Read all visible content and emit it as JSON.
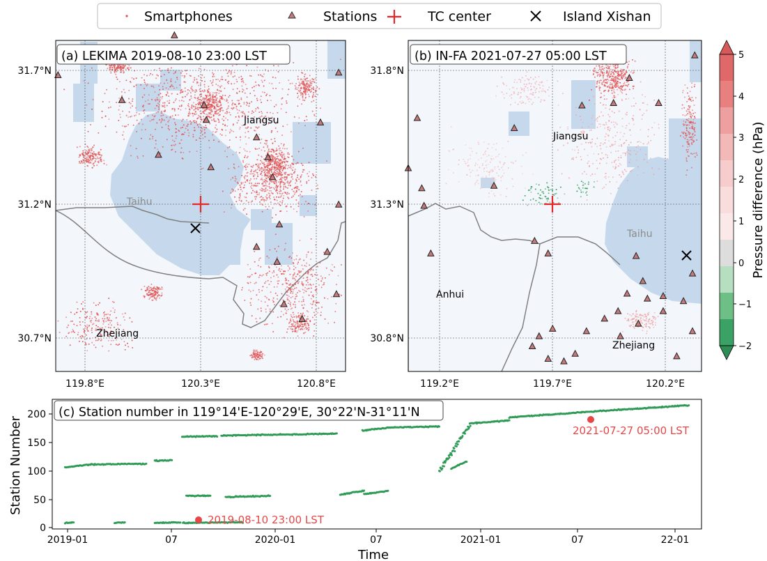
{
  "legend": {
    "items": [
      {
        "label": "Smartphones",
        "symbol": "dot"
      },
      {
        "label": "Stations",
        "symbol": "triangle"
      },
      {
        "label": "TC center",
        "symbol": "plus"
      },
      {
        "label": "Island Xishan",
        "symbol": "cross"
      }
    ]
  },
  "colors": {
    "water": "#c6d9ec",
    "land": "#f3f7fc",
    "smartphone": "#e05252",
    "station_fill": "#c47a7a",
    "tc_center": "#e8262a",
    "negative": "#2e9a55",
    "highlight": "#e64646",
    "border": "#7f7f7f"
  },
  "chart_data": [
    {
      "type": "scatter",
      "panel": "a",
      "title": "(a) LEKIMA 2019-08-10 23:00 LST",
      "x_ticks": [
        "119.8°E",
        "120.3°E",
        "120.8°E"
      ],
      "y_ticks": [
        "30.7°N",
        "31.2°N",
        "31.7°N"
      ],
      "xlim": [
        119.65,
        120.92
      ],
      "ylim": [
        30.55,
        31.88
      ],
      "tc_center": [
        120.3,
        31.2
      ],
      "island_xishan": [
        120.28,
        31.11
      ],
      "region_labels": [
        {
          "text": "Jiangsu",
          "lon": 120.55,
          "lat": 31.5
        },
        {
          "text": "Taihu",
          "lon": 120.07,
          "lat": 31.2
        },
        {
          "text": "Zhejiang",
          "lon": 119.89,
          "lat": 30.72
        }
      ],
      "stations": [
        [
          119.66,
          31.74
        ],
        [
          120.17,
          31.9
        ],
        [
          120.1,
          31.42
        ],
        [
          120.31,
          31.56
        ],
        [
          120.53,
          31.49
        ],
        [
          120.81,
          31.55
        ],
        [
          120.58,
          31.84
        ],
        [
          120.89,
          31.75
        ],
        [
          119.94,
          31.64
        ],
        [
          120.3,
          31.62
        ],
        [
          120.6,
          31.33
        ],
        [
          120.58,
          31.41
        ],
        [
          120.33,
          31.37
        ],
        [
          120.89,
          31.22
        ],
        [
          120.53,
          31.05
        ],
        [
          120.63,
          31.14
        ],
        [
          120.84,
          31.03
        ],
        [
          120.62,
          30.99
        ],
        [
          120.65,
          30.82
        ],
        [
          120.73,
          30.76
        ],
        [
          120.88,
          30.86
        ]
      ]
    },
    {
      "type": "scatter",
      "panel": "b",
      "title": "(b) IN-FA 2021-07-27 05:00 LST",
      "x_ticks": [
        "119.2°E",
        "119.7°E",
        "120.2°E"
      ],
      "y_ticks": [
        "30.8°N",
        "31.3°N",
        "31.8°N"
      ],
      "xlim": [
        119.0,
        120.3
      ],
      "ylim": [
        30.65,
        31.97
      ],
      "tc_center": [
        119.7,
        31.3
      ],
      "island_xishan": [
        120.27,
        31.07
      ],
      "region_labels": [
        {
          "text": "Jiangsu",
          "lon": 119.78,
          "lat": 31.55
        },
        {
          "text": "Taihu",
          "lon": 120.08,
          "lat": 31.2
        },
        {
          "text": "Anhui",
          "lon": 119.15,
          "lat": 30.97
        },
        {
          "text": "Zhejiang",
          "lon": 120.03,
          "lat": 30.77
        }
      ],
      "stations": [
        [
          119.04,
          31.66
        ],
        [
          119.0,
          31.46
        ],
        [
          119.06,
          31.38
        ],
        [
          119.07,
          31.31
        ],
        [
          119.1,
          31.12
        ],
        [
          119.56,
          31.17
        ],
        [
          119.62,
          31.12
        ],
        [
          119.77,
          31.71
        ],
        [
          119.91,
          31.72
        ],
        [
          119.98,
          31.82
        ],
        [
          120.27,
          31.91
        ],
        [
          120.11,
          31.72
        ],
        [
          119.47,
          31.62
        ],
        [
          119.38,
          31.39
        ],
        [
          120.01,
          31.11
        ],
        [
          120.26,
          31.04
        ],
        [
          119.64,
          30.82
        ],
        [
          119.79,
          30.81
        ],
        [
          119.94,
          30.79
        ],
        [
          120.02,
          30.84
        ],
        [
          120.13,
          30.89
        ],
        [
          120.19,
          30.71
        ],
        [
          120.26,
          30.81
        ],
        [
          119.58,
          30.79
        ],
        [
          119.55,
          30.75
        ],
        [
          119.62,
          30.7
        ],
        [
          119.69,
          30.69
        ],
        [
          119.74,
          30.72
        ],
        [
          119.87,
          30.86
        ],
        [
          119.93,
          30.89
        ],
        [
          119.97,
          30.96
        ],
        [
          120.04,
          31.01
        ],
        [
          120.06,
          30.94
        ],
        [
          120.13,
          30.95
        ],
        [
          120.22,
          30.93
        ]
      ]
    },
    {
      "type": "scatter",
      "panel": "c",
      "title": "(c) Station number in 119°14'E-120°29'E, 30°22'N-31°11'N",
      "xlabel": "Time",
      "ylabel": "Station Number",
      "x_ticks": [
        "2019-01",
        "07",
        "2020-01",
        "07",
        "2021-01",
        "07",
        "22-01"
      ],
      "y_ticks": [
        0,
        50,
        100,
        150,
        200
      ],
      "xlim_days": [
        -15,
        745
      ],
      "ylim": [
        0,
        215
      ],
      "series": [
        {
          "segments": [
            [
              0,
              30,
              102,
              107
            ],
            [
              30,
              95,
              107,
              108
            ],
            [
              105,
              125,
              113,
              114
            ],
            [
              137,
              178,
              153,
              154
            ],
            [
              183,
              318,
              155,
              158
            ],
            [
              348,
              378,
              163,
              168
            ],
            [
              378,
              438,
              168,
              170
            ],
            [
              452,
              470,
              100,
              112
            ],
            [
              475,
              520,
              175,
              180
            ],
            [
              520,
              620,
              185,
              195
            ],
            [
              620,
              730,
              195,
              205
            ],
            [
              142,
              170,
              55,
              55
            ],
            [
              188,
              240,
              53,
              55
            ],
            [
              322,
              350,
              57,
              63
            ],
            [
              350,
              378,
              58,
              63
            ],
            [
              0,
              10,
              10,
              11
            ],
            [
              58,
              70,
              10,
              11
            ],
            [
              105,
              135,
              10,
              11
            ],
            [
              138,
              208,
              10,
              11
            ]
          ]
        }
      ],
      "annotations": [
        {
          "text": "2019-08-10 23:00 LST",
          "x_day": 221,
          "y": 13
        },
        {
          "text": "2021-07-27 05:00 LST",
          "x_day": 938,
          "y": 190
        }
      ]
    }
  ],
  "colorbar": {
    "label": "Pressure difference (hPa)",
    "ticks": [
      "5",
      "4",
      "3",
      "2",
      "1",
      "0",
      "−1",
      "−2"
    ]
  }
}
